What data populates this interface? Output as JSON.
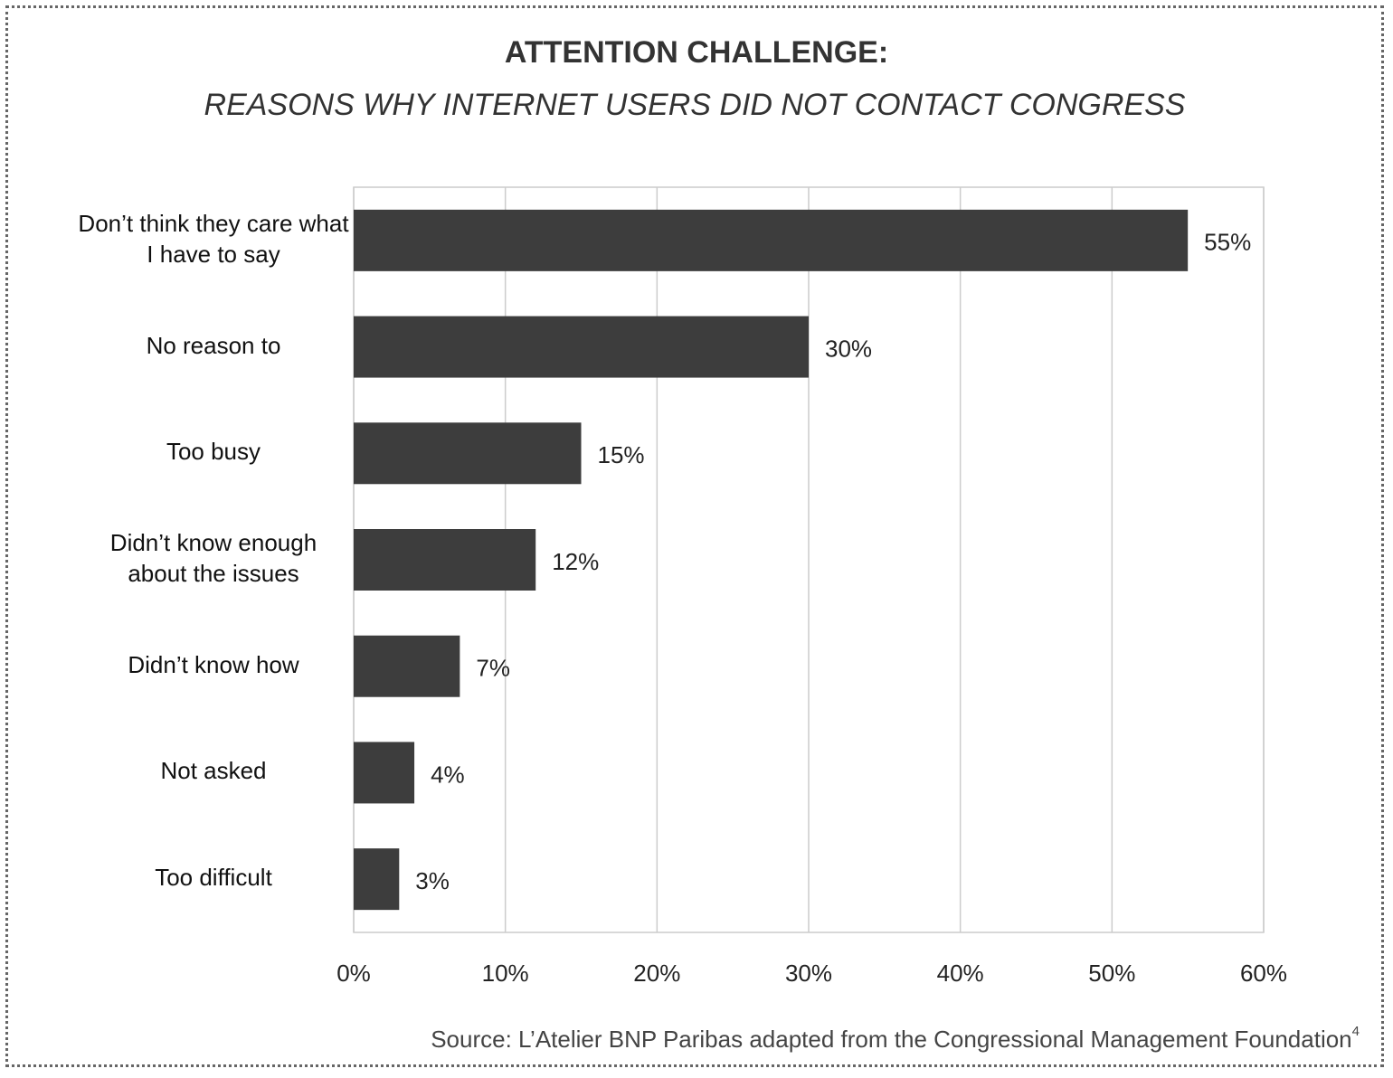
{
  "chart_data": {
    "type": "barh",
    "title": "ATTENTION CHALLENGE:",
    "subtitle": "REASONS WHY INTERNET USERS DID NOT CONTACT CONGRESS",
    "categories": [
      "Don’t think they care what I have to say",
      "No reason to",
      "Too busy",
      "Didn’t know enough about the issues",
      "Didn’t know how",
      "Not asked",
      "Too difficult"
    ],
    "values": [
      55,
      30,
      15,
      12,
      7,
      4,
      3
    ],
    "value_labels": [
      "55%",
      "30%",
      "15%",
      "12%",
      "7%",
      "4%",
      "3%"
    ],
    "color": "#3d3d3d",
    "xlim": [
      0,
      60
    ],
    "xticks": [
      {
        "value": 0,
        "label": "0%"
      },
      {
        "value": 10,
        "label": "10%"
      },
      {
        "value": 20,
        "label": "20%"
      },
      {
        "value": 30,
        "label": "30%"
      },
      {
        "value": 40,
        "label": "40%"
      },
      {
        "value": 50,
        "label": "50%"
      },
      {
        "value": 60,
        "label": "60%"
      }
    ],
    "grid": true,
    "source": "Source: L’Atelier BNP Paribas adapted from the Congressional Management Foundation",
    "source_note": "4"
  }
}
